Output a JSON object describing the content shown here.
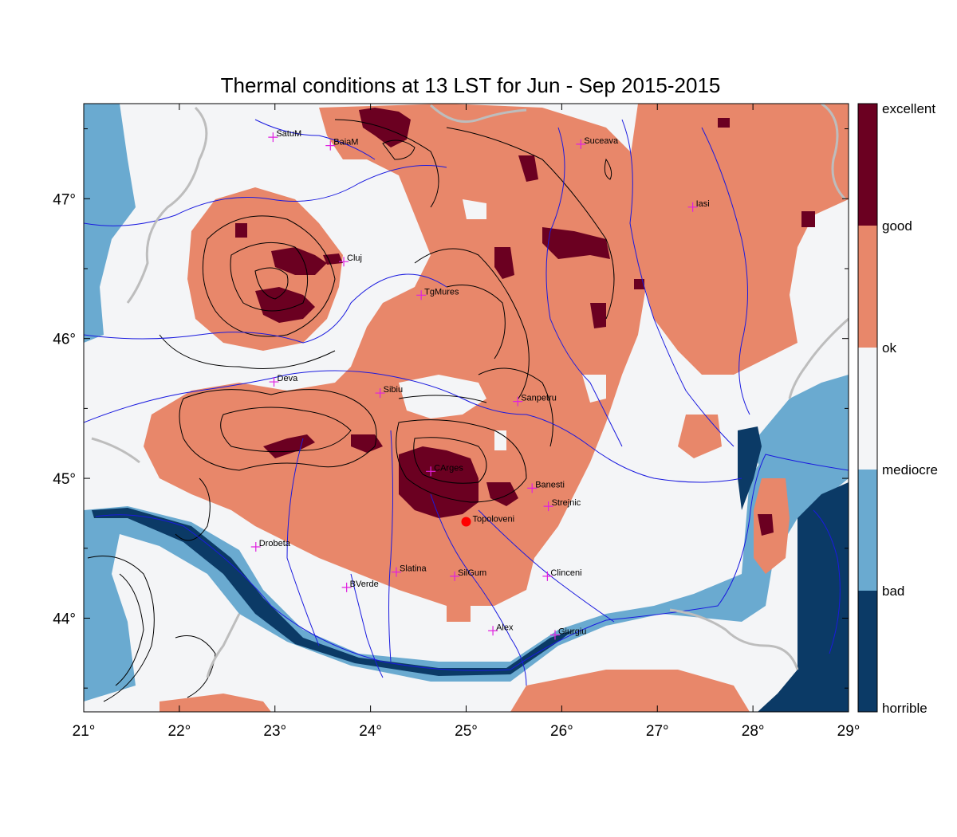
{
  "title": "Thermal conditions at 13 LST for Jun - Sep  2015-2015",
  "colors": {
    "horrible": "#0b3a66",
    "bad": "#6aaad0",
    "mediocre": "#f4f5f7",
    "ok": "#e8876a",
    "good": "#e8876a",
    "excellent": "#6b0021",
    "rivers": "#1a1adf",
    "borders": "#bdbdbd",
    "city_marker": "#e020e0",
    "highlight": "#ff0000"
  },
  "axes": {
    "x_ticks": [
      "21°",
      "22°",
      "23°",
      "24°",
      "25°",
      "26°",
      "27°",
      "28°",
      "29°"
    ],
    "y_ticks": [
      "47°",
      "46°",
      "45°",
      "44°"
    ]
  },
  "colorbar": {
    "labels": [
      "excellent",
      "good",
      "ok",
      "mediocre",
      "bad",
      "horrible"
    ]
  },
  "cities": [
    {
      "name": "SatuM",
      "lon": 22.98,
      "lat": 47.44
    },
    {
      "name": "BaiaM",
      "lon": 23.58,
      "lat": 47.38
    },
    {
      "name": "Suceava",
      "lon": 26.2,
      "lat": 47.39
    },
    {
      "name": "Iasi",
      "lon": 27.37,
      "lat": 46.94
    },
    {
      "name": "Cluj",
      "lon": 23.72,
      "lat": 46.55
    },
    {
      "name": "TgMures",
      "lon": 24.53,
      "lat": 46.31
    },
    {
      "name": "Deva",
      "lon": 22.99,
      "lat": 45.69
    },
    {
      "name": "Sibiu",
      "lon": 24.1,
      "lat": 45.61
    },
    {
      "name": "Sanpetru",
      "lon": 25.54,
      "lat": 45.55
    },
    {
      "name": "CArges",
      "lon": 24.63,
      "lat": 45.05
    },
    {
      "name": "Banesti",
      "lon": 25.69,
      "lat": 44.93
    },
    {
      "name": "Strejnic",
      "lon": 25.86,
      "lat": 44.8
    },
    {
      "name": "Drobeta",
      "lon": 22.8,
      "lat": 44.51
    },
    {
      "name": "Slatina",
      "lon": 24.27,
      "lat": 44.33
    },
    {
      "name": "SilGum",
      "lon": 24.88,
      "lat": 44.3
    },
    {
      "name": "Clinceni",
      "lon": 25.85,
      "lat": 44.3
    },
    {
      "name": "BVerde",
      "lon": 23.75,
      "lat": 44.22
    },
    {
      "name": "Alex",
      "lon": 25.28,
      "lat": 43.91
    },
    {
      "name": "Giurgiu",
      "lon": 25.93,
      "lat": 43.88
    }
  ],
  "highlight_city": {
    "name": "Topoloveni",
    "lon": 25.0,
    "lat": 44.69
  }
}
